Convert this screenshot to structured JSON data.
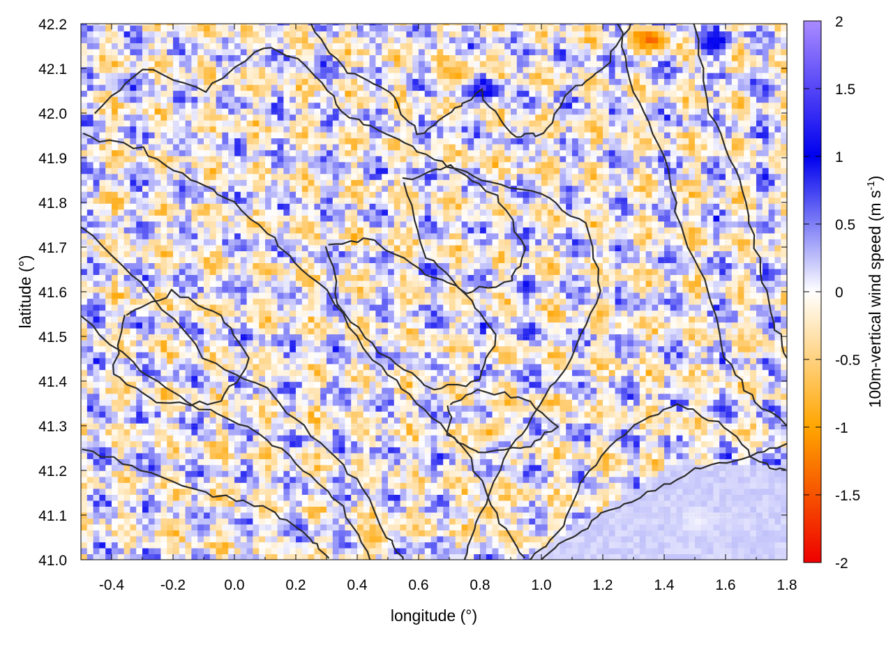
{
  "chart_data": {
    "type": "heatmap",
    "title": "",
    "xlabel": "longitude (°)",
    "ylabel": "latitude (°)",
    "xlim": [
      -0.5,
      1.8
    ],
    "ylim": [
      41.0,
      42.2
    ],
    "x_ticks": [
      -0.4,
      -0.2,
      0.0,
      0.2,
      0.4,
      0.6,
      0.8,
      1.0,
      1.2,
      1.4,
      1.6,
      1.8
    ],
    "x_tick_labels": [
      "-0.4",
      "-0.2",
      "0.0",
      "0.2",
      "0.4",
      "0.6",
      "0.8",
      "1.0",
      "1.2",
      "1.4",
      "1.6",
      "1.8"
    ],
    "y_ticks": [
      41.0,
      41.1,
      41.2,
      41.3,
      41.4,
      41.5,
      41.6,
      41.7,
      41.8,
      41.9,
      42.0,
      42.1,
      42.2
    ],
    "y_tick_labels": [
      "41.0",
      "41.1",
      "41.2",
      "41.3",
      "41.4",
      "41.5",
      "41.6",
      "41.7",
      "41.8",
      "41.9",
      "42.0",
      "42.1",
      "42.2"
    ],
    "grid": true,
    "colorbar": {
      "label_main": "100m-vertical wind speed (m s",
      "label_sup": "-1",
      "label_close": ")",
      "range": [
        -2,
        2
      ],
      "ticks": [
        2,
        1.5,
        1,
        0.5,
        0,
        -0.5,
        -1,
        -1.5,
        -2
      ],
      "tick_labels": [
        "2",
        "1.5",
        "1",
        "0.5",
        "0",
        "-0.5",
        "-1",
        "-1.5",
        "-2"
      ],
      "colors": {
        "neg_max": "#ee0000",
        "neg_mid": "#ffa500",
        "zero": "#ffffff",
        "pos_mid": "#0000ee",
        "pos_max": "#a98bff"
      }
    },
    "features": [
      {
        "type": "updraft",
        "lon": 0.8,
        "lat": 42.05,
        "value": 1.5
      },
      {
        "type": "updraft",
        "lon": 1.55,
        "lat": 42.15,
        "value": 1.3
      },
      {
        "type": "downdraft",
        "lon": 1.35,
        "lat": 42.16,
        "value": -1.6
      },
      {
        "type": "downdraft",
        "lon": 0.72,
        "lat": 42.08,
        "value": -1.0
      },
      {
        "type": "updraft",
        "lon": 0.85,
        "lat": 41.26,
        "value": 1.0
      },
      {
        "type": "downdraft",
        "lon": 0.82,
        "lat": 41.28,
        "value": -1.0
      },
      {
        "type": "downdraft",
        "lon": 0.45,
        "lat": 41.04,
        "value": -0.9
      },
      {
        "type": "downdraft",
        "lon": 0.82,
        "lat": 41.1,
        "value": -1.0
      },
      {
        "type": "calm-sea",
        "lon": 1.5,
        "lat": 41.08,
        "value": 0.05
      }
    ],
    "contour_color": "#2b2b2b"
  }
}
